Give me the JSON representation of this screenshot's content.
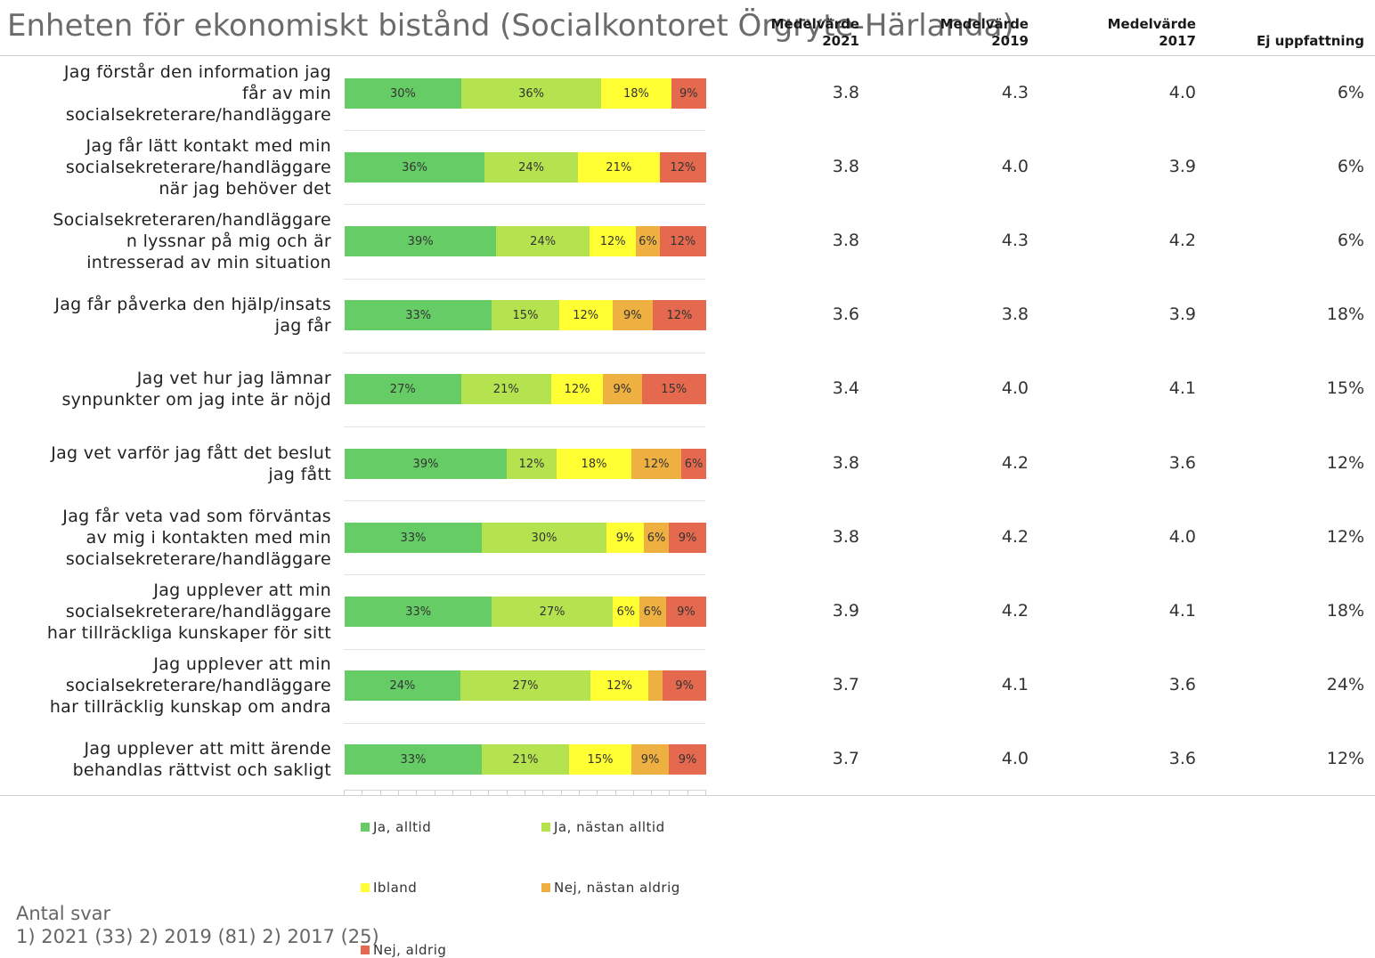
{
  "chart_data": {
    "type": "bar",
    "orientation": "horizontal-stacked-100",
    "title": "Enheten för ekonomiskt bistånd (Socialkontoret Örgryte-Härlanda)",
    "columns": [
      "Medelvärde 2021",
      "Medelvärde 2019",
      "Medelvärde 2017",
      "Ej uppfattning"
    ],
    "column_heads": [
      {
        "line1": "Medelvärde",
        "line2": "2021"
      },
      {
        "line1": "Medelvärde",
        "line2": "2019"
      },
      {
        "line1": "Medelvärde",
        "line2": "2017"
      },
      {
        "line1": "",
        "line2": "Ej uppfattning"
      }
    ],
    "series": [
      {
        "name": "Ja, alltid",
        "color": "#66cc66"
      },
      {
        "name": "Ja, nästan alltid",
        "color": "#b5e34f"
      },
      {
        "name": "Ibland",
        "color": "#ffff33"
      },
      {
        "name": "Nej, nästan aldrig",
        "color": "#edb041"
      },
      {
        "name": "Nej, aldrig",
        "color": "#e5694e"
      }
    ],
    "rows": [
      {
        "label": "Jag förstår den information jag får av min socialsekreterare/handläggare",
        "lines": [
          "Jag förstår den information jag",
          "får av min",
          "socialsekreterare/handläggare"
        ],
        "values": [
          30,
          36,
          18,
          0,
          9
        ],
        "labels": [
          "30%",
          "36%",
          "18%",
          "",
          "9%"
        ],
        "m2021": "3.8",
        "m2019": "4.3",
        "m2017": "4.0",
        "ej": "6%"
      },
      {
        "label": "Jag får lätt kontakt med min socialsekreterare/handläggare när jag behöver det",
        "lines": [
          "Jag får lätt kontakt med min",
          "socialsekreterare/handläggare",
          "när jag behöver det"
        ],
        "values": [
          36,
          24,
          21,
          0,
          12
        ],
        "labels": [
          "36%",
          "24%",
          "21%",
          "",
          "12%"
        ],
        "m2021": "3.8",
        "m2019": "4.0",
        "m2017": "3.9",
        "ej": "6%"
      },
      {
        "label": "Socialsekreteraren/handläggaren lyssnar på mig och är intresserad av min situation",
        "lines": [
          "Socialsekreteraren/handläggare",
          "n lyssnar på mig och är",
          "intresserad av min situation"
        ],
        "values": [
          39,
          24,
          12,
          6,
          12
        ],
        "labels": [
          "39%",
          "24%",
          "12%",
          "6%",
          "12%"
        ],
        "m2021": "3.8",
        "m2019": "4.3",
        "m2017": "4.2",
        "ej": "6%"
      },
      {
        "label": "Jag får påverka den hjälp/insats jag får",
        "lines": [
          "Jag får påverka den hjälp/insats",
          "jag får"
        ],
        "values": [
          33,
          15,
          12,
          9,
          12
        ],
        "labels": [
          "33%",
          "15%",
          "12%",
          "9%",
          "12%"
        ],
        "m2021": "3.6",
        "m2019": "3.8",
        "m2017": "3.9",
        "ej": "18%"
      },
      {
        "label": "Jag vet hur jag lämnar synpunkter om jag inte är nöjd",
        "lines": [
          "Jag vet hur jag lämnar",
          "synpunkter om jag inte är nöjd"
        ],
        "values": [
          27,
          21,
          12,
          9,
          15
        ],
        "labels": [
          "27%",
          "21%",
          "12%",
          "9%",
          "15%"
        ],
        "m2021": "3.4",
        "m2019": "4.0",
        "m2017": "4.1",
        "ej": "15%"
      },
      {
        "label": "Jag vet varför jag fått det beslut jag fått",
        "lines": [
          "Jag vet varför jag fått det beslut",
          "jag fått"
        ],
        "values": [
          39,
          12,
          18,
          12,
          6
        ],
        "labels": [
          "39%",
          "12%",
          "18%",
          "12%",
          "6%"
        ],
        "m2021": "3.8",
        "m2019": "4.2",
        "m2017": "3.6",
        "ej": "12%"
      },
      {
        "label": "Jag får veta vad som förväntas av mig i kontakten med min socialsekreterare/handläggare",
        "lines": [
          "Jag får veta vad som förväntas",
          "av mig i kontakten med min",
          "socialsekreterare/handläggare"
        ],
        "values": [
          33,
          30,
          9,
          6,
          9
        ],
        "labels": [
          "33%",
          "30%",
          "9%",
          "6%",
          "9%"
        ],
        "m2021": "3.8",
        "m2019": "4.2",
        "m2017": "4.0",
        "ej": "12%"
      },
      {
        "label": "Jag upplever att min socialsekreterare/handläggare har tillräckliga kunskaper för sitt",
        "lines": [
          "Jag upplever att min",
          "socialsekreterare/handläggare",
          "har tillräckliga kunskaper för sitt"
        ],
        "values": [
          33,
          27,
          6,
          6,
          9
        ],
        "labels": [
          "33%",
          "27%",
          "6%",
          "6%",
          "9%"
        ],
        "m2021": "3.9",
        "m2019": "4.2",
        "m2017": "4.1",
        "ej": "18%"
      },
      {
        "label": "Jag upplever att min socialsekreterare/handläggare har tillräcklig kunskap om andra",
        "lines": [
          "Jag upplever att min",
          "socialsekreterare/handläggare",
          "har tillräcklig kunskap om andra"
        ],
        "values": [
          24,
          27,
          12,
          3,
          9
        ],
        "labels": [
          "24%",
          "27%",
          "12%",
          "",
          "9%"
        ],
        "m2021": "3.7",
        "m2019": "4.1",
        "m2017": "3.6",
        "ej": "24%"
      },
      {
        "label": "Jag upplever att mitt ärende behandlas rättvist och sakligt",
        "lines": [
          "Jag upplever att mitt ärende",
          "behandlas rättvist och sakligt"
        ],
        "values": [
          33,
          21,
          15,
          9,
          9
        ],
        "labels": [
          "33%",
          "21%",
          "15%",
          "9%",
          "9%"
        ],
        "m2021": "3.7",
        "m2019": "4.0",
        "m2017": "3.6",
        "ej": "12%"
      }
    ],
    "legend_placement": "bottom",
    "grid": false
  },
  "footnote": {
    "heading": "Antal svar",
    "text": "1) 2021 (33) 2) 2019 (81) 2) 2017 (25)"
  }
}
